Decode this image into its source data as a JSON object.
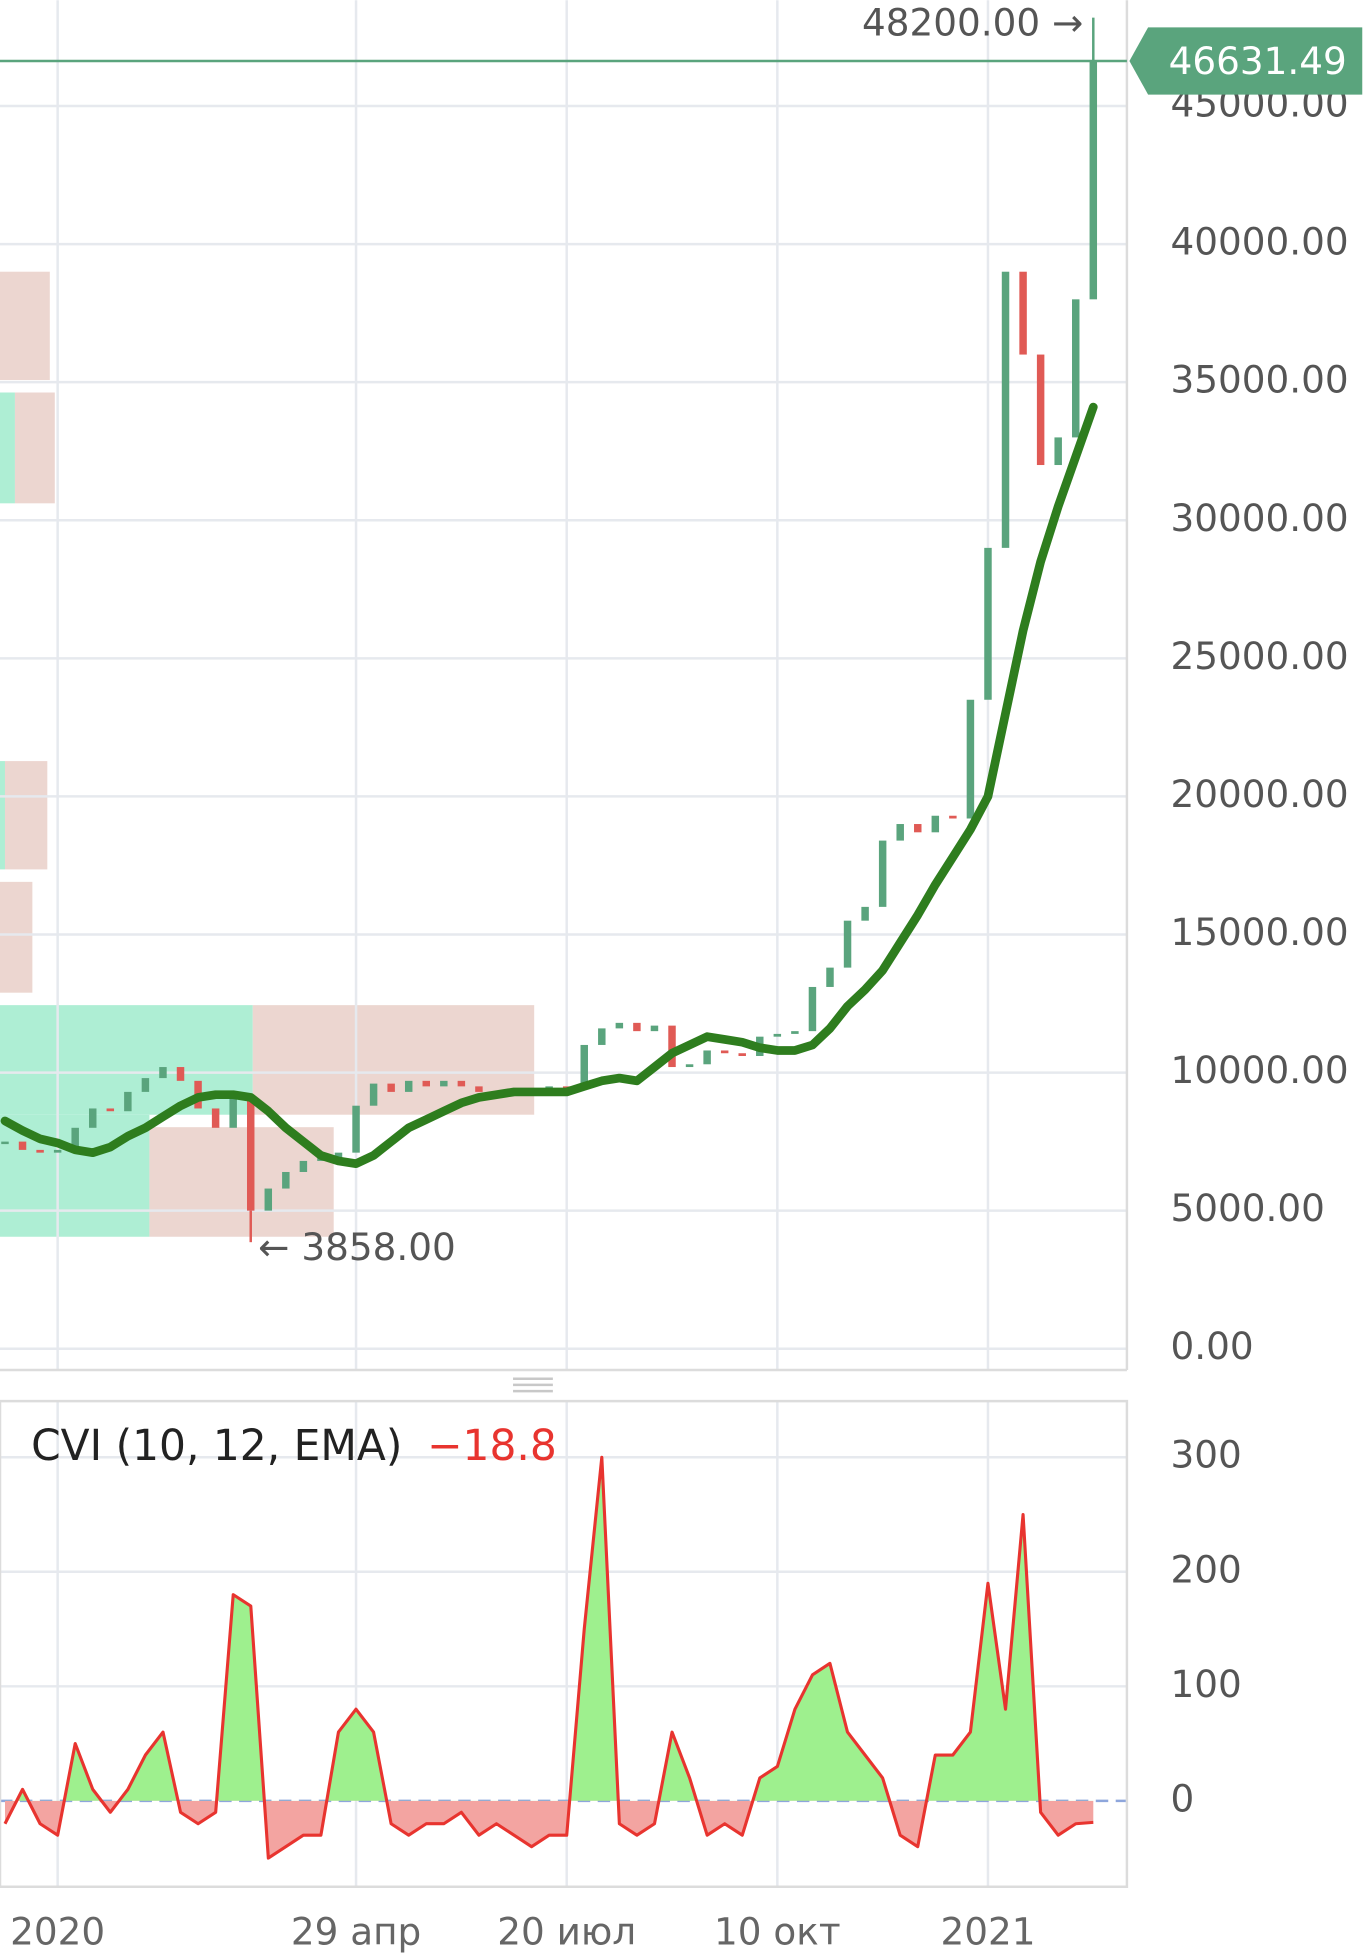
{
  "chart_data": [
    {
      "type": "line",
      "categories": [
        null,
        null,
        null,
        "2020",
        null,
        null,
        null,
        null,
        null,
        null,
        null,
        null,
        null,
        null,
        null,
        null,
        null,
        null,
        null,
        null,
        "29 апр",
        null,
        null,
        null,
        null,
        null,
        null,
        null,
        null,
        null,
        null,
        null,
        "20 июл",
        null,
        null,
        null,
        null,
        null,
        null,
        null,
        null,
        null,
        null,
        null,
        "10 окт",
        null,
        null,
        null,
        null,
        null,
        null,
        null,
        null,
        null,
        null,
        null,
        "2021",
        null,
        null,
        null,
        null,
        null,
        null
      ],
      "series": [
        {
          "color": "#5aa47d",
          "down_color": "#e05a55",
          "values": [
            7500,
            7200,
            7100,
            7200,
            8000,
            8700,
            8600,
            9300,
            9800,
            10200,
            9700,
            8700,
            8000,
            9100,
            5000,
            5800,
            6400,
            6800,
            6900,
            7100,
            8800,
            9600,
            9300,
            9700,
            9500,
            9700,
            9500,
            9300,
            9200,
            9300,
            9200,
            9500,
            9400,
            11000,
            11600,
            11800,
            11500,
            11700,
            10200,
            10300,
            10800,
            10700,
            10600,
            11300,
            11400,
            11500,
            13100,
            13800,
            15500,
            16000,
            18400,
            19000,
            18700,
            19300,
            19200,
            23500,
            29000,
            39000,
            36000,
            32000,
            33000,
            38000,
            46631.49
          ]
        },
        {
          "color": "#2e7d1e",
          "values": [
            8250,
            7900,
            7600,
            7450,
            7200,
            7100,
            7300,
            7700,
            8000,
            8400,
            8800,
            9100,
            9200,
            9200,
            9100,
            8600,
            8000,
            7500,
            7000,
            6800,
            6700,
            7000,
            7500,
            8000,
            8300,
            8600,
            8900,
            9100,
            9200,
            9300,
            9300,
            9300,
            9300,
            9500,
            9700,
            9800,
            9700,
            10200,
            10700,
            11000,
            11300,
            11200,
            11100,
            10900,
            10800,
            10800,
            11000,
            11600,
            12400,
            13000,
            13700,
            14700,
            15700,
            16800,
            17800,
            18800,
            20000,
            23000,
            26000,
            28500,
            30500,
            32300,
            34100
          ]
        }
      ],
      "ylim": [
        -770,
        48830
      ],
      "yticks": [
        {
          "value": 0,
          "label": "0.00"
        },
        {
          "value": 5000,
          "label": "5000.00"
        },
        {
          "value": 10000,
          "label": "10000.00"
        },
        {
          "value": 15000,
          "label": "15000.00"
        },
        {
          "value": 20000,
          "label": "20000.00"
        },
        {
          "value": 25000,
          "label": "25000.00"
        },
        {
          "value": 30000,
          "label": "30000.00"
        },
        {
          "value": 35000,
          "label": "35000.00"
        },
        {
          "value": 40000,
          "label": "40000.00"
        },
        {
          "value": 45000,
          "label": "45000.00"
        }
      ],
      "grid": true,
      "annotations": [
        {
          "value": 48200,
          "label": "48200.00 →"
        },
        {
          "value": 3858,
          "label": "← 3858.00"
        }
      ]
    },
    {
      "type": "area",
      "title": "CVI (10, 12, EMA)",
      "series": [
        {
          "color": "#e8342f",
          "fill_above": "#9ef08e",
          "fill_below": "#f3a4a1",
          "values": [
            -20,
            10,
            -20,
            -30,
            50,
            10,
            -10,
            10,
            40,
            60,
            -10,
            -20,
            -10,
            180,
            170,
            -50,
            -40,
            -30,
            -30,
            60,
            80,
            60,
            -20,
            -30,
            -20,
            -20,
            -10,
            -30,
            -20,
            -30,
            -40,
            -30,
            -30,
            150,
            300,
            -20,
            -30,
            -20,
            60,
            20,
            -30,
            -20,
            -30,
            20,
            30,
            80,
            110,
            120,
            60,
            40,
            20,
            -30,
            -40,
            40,
            40,
            60,
            190,
            80,
            250,
            -10,
            -30,
            -20,
            -18.8
          ],
          "value_labels": [
            null,
            null,
            null,
            null,
            null,
            null,
            null,
            null,
            null,
            null,
            null,
            null,
            null,
            null,
            null,
            null,
            null,
            null,
            null,
            null,
            null,
            null,
            null,
            null,
            null,
            null,
            null,
            null,
            null,
            null,
            null,
            null,
            null,
            null,
            null,
            null,
            null,
            null,
            null,
            null,
            null,
            null,
            null,
            null,
            null,
            null,
            null,
            null,
            null,
            null,
            null,
            null,
            null,
            null,
            null,
            null,
            null,
            null,
            null,
            null,
            null,
            null,
            "−18.8"
          ]
        }
      ],
      "ylim": [
        -75,
        349
      ],
      "yticks": [
        0,
        100,
        200,
        300
      ],
      "grid": true
    }
  ]
}
